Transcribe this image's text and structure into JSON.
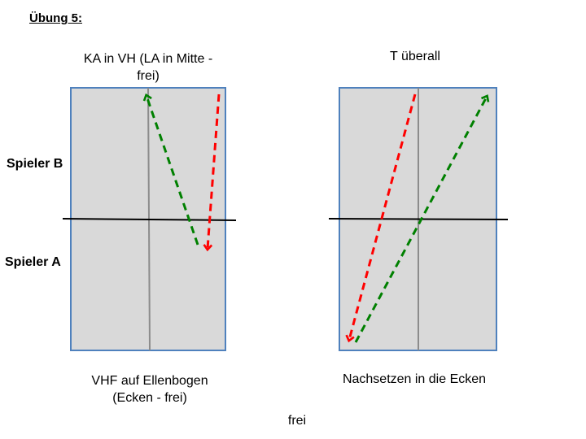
{
  "slide": {
    "heading": "Übung 5:",
    "footer": "frei"
  },
  "labels": {
    "player_b": "Spieler B",
    "player_a": "Spieler A"
  },
  "left_table": {
    "title": "KA in VH (LA in Mitte - frei)",
    "caption": "VHF auf Ellenbogen (Ecken - frei)"
  },
  "right_table": {
    "title": "T überall",
    "caption": "Nachsetzen in die Ecken"
  },
  "colors": {
    "table_fill": "#d9d9d9",
    "table_border": "#4f81bd",
    "center_line": "#8c8c8c",
    "net": "#000000",
    "arrow_red": "#ff0000",
    "arrow_green": "#008000"
  }
}
